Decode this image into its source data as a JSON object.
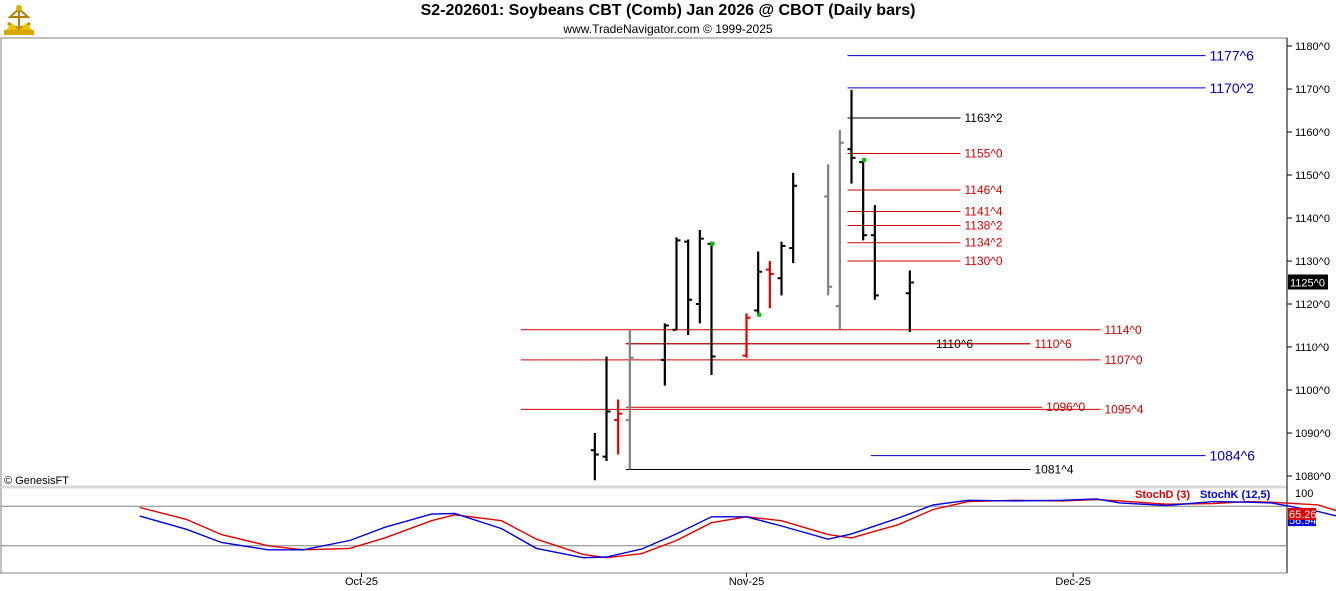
{
  "header": {
    "title": "S2-202601:  Soybeans CBT (Comb) Jan 2026 @ CBOT  (Daily bars)",
    "subtitle": "www.TradeNavigator.com © 1999-2025"
  },
  "copyright": "© GenesisFT",
  "colors": {
    "bar_black": "#000000",
    "bar_gray": "#808080",
    "bar_red": "#e00000",
    "bar_green": "#00c000",
    "level_red": "#d00000",
    "level_black": "#000000",
    "level_blue": "#0000c0",
    "stoch_d": "#e00000",
    "stoch_k": "#0000e0"
  },
  "chart_data": [
    {
      "type": "ohlc",
      "y_tick_labels": [
        "1180^0",
        "1170^0",
        "1160^0",
        "1150^0",
        "1140^0",
        "1130^0",
        "1120^0",
        "1110^0",
        "1100^0",
        "1090^0",
        "1080^0"
      ],
      "y_tick_values": [
        1180,
        1170,
        1160,
        1150,
        1140,
        1130,
        1120,
        1110,
        1100,
        1090,
        1080
      ],
      "ylim": [
        1078.5,
        1181.5
      ],
      "x_tick_labels": [
        "Oct-25",
        "Nov-25",
        "Dec-25"
      ],
      "x_tick_dates": [
        "2025-10-01",
        "2025-11-03",
        "2025-12-01"
      ],
      "last_price_label": "1125^0",
      "last_price": 1125.0,
      "bars": [
        {
          "date": "2025-10-21",
          "open": 1086.0,
          "high": 1090.0,
          "low": 1079.0,
          "close": 1085.0,
          "color": "black"
        },
        {
          "date": "2025-10-22",
          "open": 1084.5,
          "high": 1107.8,
          "low": 1083.5,
          "close": 1095.0,
          "color": "black"
        },
        {
          "date": "2025-10-23",
          "open": 1093.0,
          "high": 1097.8,
          "low": 1085.0,
          "close": 1094.5,
          "color": "red"
        },
        {
          "date": "2025-10-24",
          "open": 1093.0,
          "high": 1114.0,
          "low": 1081.5,
          "close": 1107.5,
          "color": "gray"
        },
        {
          "date": "2025-10-27",
          "open": 1107.0,
          "high": 1115.5,
          "low": 1101.0,
          "close": 1115.0,
          "color": "black"
        },
        {
          "date": "2025-10-28",
          "open": 1114.0,
          "high": 1135.5,
          "low": 1114.0,
          "close": 1134.8,
          "color": "black"
        },
        {
          "date": "2025-10-29",
          "open": 1134.5,
          "high": 1135.0,
          "low": 1112.8,
          "close": 1121.0,
          "color": "black"
        },
        {
          "date": "2025-10-30",
          "open": 1120.0,
          "high": 1137.2,
          "low": 1115.5,
          "close": 1135.2,
          "color": "black"
        },
        {
          "date": "2025-10-31",
          "open": 1134.0,
          "high": 1134.5,
          "low": 1103.5,
          "close": 1107.8,
          "color": "black"
        },
        {
          "date": "2025-11-03",
          "open": 1108.0,
          "high": 1117.8,
          "low": 1107.5,
          "close": 1116.8,
          "color": "red"
        },
        {
          "date": "2025-11-04",
          "open": 1118.5,
          "high": 1132.2,
          "low": 1117.5,
          "close": 1127.5,
          "color": "black"
        },
        {
          "date": "2025-11-05",
          "open": 1128.0,
          "high": 1130.0,
          "low": 1119.0,
          "close": 1127.0,
          "color": "red"
        },
        {
          "date": "2025-11-06",
          "open": 1126.0,
          "high": 1134.5,
          "low": 1122.0,
          "close": 1133.5,
          "color": "black"
        },
        {
          "date": "2025-11-07",
          "open": 1133.0,
          "high": 1150.5,
          "low": 1129.5,
          "close": 1147.5,
          "color": "black"
        },
        {
          "date": "2025-11-10",
          "open": 1145.0,
          "high": 1152.5,
          "low": 1122.0,
          "close": 1124.0,
          "color": "gray"
        },
        {
          "date": "2025-11-11",
          "open": 1119.5,
          "high": 1160.5,
          "low": 1114.0,
          "close": 1157.5,
          "color": "gray"
        },
        {
          "date": "2025-11-12",
          "open": 1156.0,
          "high": 1169.8,
          "low": 1148.0,
          "close": 1154.0,
          "color": "black"
        },
        {
          "date": "2025-11-13",
          "open": 1153.0,
          "high": 1153.5,
          "low": 1134.8,
          "close": 1136.0,
          "color": "black"
        },
        {
          "date": "2025-11-14",
          "open": 1136.0,
          "high": 1143.0,
          "low": 1121.0,
          "close": 1122.0,
          "color": "black"
        },
        {
          "date": "2025-11-17",
          "open": 1122.5,
          "high": 1127.8,
          "low": 1113.5,
          "close": 1125.0,
          "color": "black"
        }
      ],
      "green_markers": [
        {
          "date": "2025-10-31",
          "price": 1134.0
        },
        {
          "date": "2025-11-04",
          "price": 1117.5
        },
        {
          "date": "2025-11-13",
          "price": 1153.5
        }
      ],
      "levels": [
        {
          "label": "1177^6",
          "value": 1177.75,
          "color": "blue",
          "from": "2025-11-12",
          "to": "2025-12-12",
          "size": "big"
        },
        {
          "label": "1170^2",
          "value": 1170.25,
          "color": "blue",
          "from": "2025-11-12",
          "to": "2025-12-12",
          "size": "big"
        },
        {
          "label": "1163^2",
          "value": 1163.25,
          "color": "black",
          "from": "2025-11-12",
          "to": "2025-11-21",
          "size": "small"
        },
        {
          "label": "1155^0",
          "value": 1155.0,
          "color": "red",
          "from": "2025-11-12",
          "to": "2025-11-21",
          "size": "small"
        },
        {
          "label": "1146^4",
          "value": 1146.5,
          "color": "red",
          "from": "2025-11-12",
          "to": "2025-11-21",
          "size": "small"
        },
        {
          "label": "1141^4",
          "value": 1141.5,
          "color": "red",
          "from": "2025-11-12",
          "to": "2025-11-21",
          "size": "small"
        },
        {
          "label": "1138^2",
          "value": 1138.25,
          "color": "red",
          "from": "2025-11-12",
          "to": "2025-11-21",
          "size": "small"
        },
        {
          "label": "1134^2",
          "value": 1134.25,
          "color": "red",
          "from": "2025-11-12",
          "to": "2025-11-21",
          "size": "small"
        },
        {
          "label": "1130^0",
          "value": 1130.0,
          "color": "red",
          "from": "2025-11-12",
          "to": "2025-11-21",
          "size": "small"
        },
        {
          "label": "1114^0",
          "value": 1114.0,
          "color": "red",
          "from": "2025-10-15",
          "to": "2025-12-03",
          "size": "small"
        },
        {
          "label": "1110^6",
          "value": 1110.75,
          "color": "black",
          "from": "2025-10-24",
          "to": "2025-11-27",
          "size": "small"
        },
        {
          "label": "1110^6",
          "value": 1110.75,
          "color": "red",
          "from": "2025-10-24",
          "to": "2025-11-27",
          "size": "small"
        },
        {
          "label": "1107^0",
          "value": 1107.0,
          "color": "red",
          "from": "2025-10-15",
          "to": "2025-12-03",
          "size": "small"
        },
        {
          "label": "1096^0",
          "value": 1096.0,
          "color": "red",
          "from": "2025-10-24",
          "to": "2025-11-28",
          "size": "small"
        },
        {
          "label": "1095^4",
          "value": 1095.5,
          "color": "red",
          "from": "2025-10-15",
          "to": "2025-12-03",
          "size": "small"
        },
        {
          "label": "1084^6",
          "value": 1084.75,
          "color": "blue",
          "from": "2025-11-14",
          "to": "2025-12-12",
          "size": "big"
        },
        {
          "label": "1081^4",
          "value": 1081.5,
          "color": "black",
          "from": "2025-10-24",
          "to": "2025-11-27",
          "size": "small"
        }
      ]
    },
    {
      "type": "line",
      "y_tick_labels": [
        "100"
      ],
      "ylim": [
        -5,
        105
      ],
      "reference_lines": [
        80,
        20
      ],
      "series": [
        {
          "name": "StochD (3)",
          "color": "#e00000",
          "last_label": "65.26",
          "last": 65.26,
          "values": [
            {
              "date": "2025-09-12",
              "value": 78
            },
            {
              "date": "2025-09-16",
              "value": 60
            },
            {
              "date": "2025-09-19",
              "value": 37
            },
            {
              "date": "2025-09-23",
              "value": 20
            },
            {
              "date": "2025-09-26",
              "value": 14
            },
            {
              "date": "2025-09-30",
              "value": 16
            },
            {
              "date": "2025-10-03",
              "value": 32
            },
            {
              "date": "2025-10-07",
              "value": 58
            },
            {
              "date": "2025-10-09",
              "value": 67
            },
            {
              "date": "2025-10-13",
              "value": 58
            },
            {
              "date": "2025-10-16",
              "value": 30
            },
            {
              "date": "2025-10-20",
              "value": 7
            },
            {
              "date": "2025-10-22",
              "value": 2
            },
            {
              "date": "2025-10-25",
              "value": 8
            },
            {
              "date": "2025-10-28",
              "value": 28
            },
            {
              "date": "2025-10-31",
              "value": 55
            },
            {
              "date": "2025-11-03",
              "value": 64
            },
            {
              "date": "2025-11-06",
              "value": 58
            },
            {
              "date": "2025-11-10",
              "value": 37
            },
            {
              "date": "2025-11-12",
              "value": 32
            },
            {
              "date": "2025-11-16",
              "value": 52
            },
            {
              "date": "2025-11-19",
              "value": 75
            },
            {
              "date": "2025-11-22",
              "value": 87
            },
            {
              "date": "2025-11-26",
              "value": 89
            },
            {
              "date": "2025-11-30",
              "value": 88
            },
            {
              "date": "2025-12-03",
              "value": 90
            },
            {
              "date": "2025-12-05",
              "value": 88
            },
            {
              "date": "2025-12-09",
              "value": 83
            },
            {
              "date": "2025-12-13",
              "value": 84
            },
            {
              "date": "2025-12-16",
              "value": 87
            },
            {
              "date": "2025-12-18",
              "value": 86
            },
            {
              "date": "2025-12-22",
              "value": 82
            },
            {
              "date": "2025-12-25",
              "value": 65.26
            }
          ]
        },
        {
          "name": "StochK (12,5)",
          "color": "#0000e0",
          "last_label": "58.94",
          "last": 58.94,
          "values": [
            {
              "date": "2025-09-12",
              "value": 65
            },
            {
              "date": "2025-09-16",
              "value": 45
            },
            {
              "date": "2025-09-19",
              "value": 25
            },
            {
              "date": "2025-09-23",
              "value": 14
            },
            {
              "date": "2025-09-26",
              "value": 14
            },
            {
              "date": "2025-09-30",
              "value": 28
            },
            {
              "date": "2025-10-03",
              "value": 48
            },
            {
              "date": "2025-10-07",
              "value": 68
            },
            {
              "date": "2025-10-09",
              "value": 69
            },
            {
              "date": "2025-10-13",
              "value": 46
            },
            {
              "date": "2025-10-16",
              "value": 16
            },
            {
              "date": "2025-10-20",
              "value": 2
            },
            {
              "date": "2025-10-22",
              "value": 3
            },
            {
              "date": "2025-10-25",
              "value": 15
            },
            {
              "date": "2025-10-28",
              "value": 38
            },
            {
              "date": "2025-10-31",
              "value": 64
            },
            {
              "date": "2025-11-03",
              "value": 64
            },
            {
              "date": "2025-11-06",
              "value": 50
            },
            {
              "date": "2025-11-10",
              "value": 30
            },
            {
              "date": "2025-11-12",
              "value": 38
            },
            {
              "date": "2025-11-16",
              "value": 62
            },
            {
              "date": "2025-11-19",
              "value": 82
            },
            {
              "date": "2025-11-22",
              "value": 89
            },
            {
              "date": "2025-11-26",
              "value": 88
            },
            {
              "date": "2025-11-30",
              "value": 89
            },
            {
              "date": "2025-12-03",
              "value": 91
            },
            {
              "date": "2025-12-05",
              "value": 85
            },
            {
              "date": "2025-12-09",
              "value": 81
            },
            {
              "date": "2025-12-13",
              "value": 87
            },
            {
              "date": "2025-12-16",
              "value": 86
            },
            {
              "date": "2025-12-18",
              "value": 85
            },
            {
              "date": "2025-12-22",
              "value": 72
            },
            {
              "date": "2025-12-25",
              "value": 58.94
            }
          ]
        }
      ]
    }
  ]
}
